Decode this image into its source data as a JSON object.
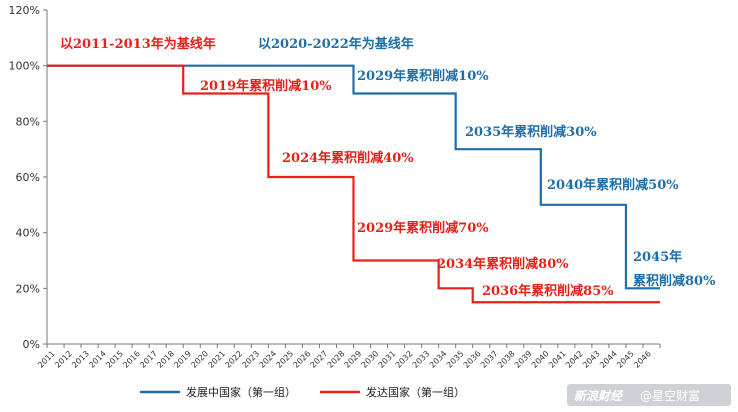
{
  "chart_data": {
    "type": "line",
    "x": [
      2011,
      2012,
      2013,
      2014,
      2015,
      2016,
      2017,
      2018,
      2019,
      2020,
      2021,
      2022,
      2023,
      2024,
      2025,
      2026,
      2027,
      2028,
      2029,
      2030,
      2031,
      2032,
      2033,
      2034,
      2035,
      2036,
      2037,
      2038,
      2039,
      2040,
      2041,
      2042,
      2043,
      2044,
      2045,
      2046
    ],
    "ylim": [
      0,
      120
    ],
    "yticks": [
      "0%",
      "20%",
      "40%",
      "60%",
      "80%",
      "100%",
      "120%"
    ],
    "series": [
      {
        "name": "发展中国家（第一组）",
        "color": "#1f6ea8",
        "values": [
          100,
          100,
          100,
          100,
          100,
          100,
          100,
          100,
          100,
          100,
          100,
          100,
          100,
          100,
          100,
          100,
          100,
          100,
          90,
          90,
          90,
          90,
          90,
          90,
          70,
          70,
          70,
          70,
          70,
          50,
          50,
          50,
          50,
          50,
          20,
          20
        ]
      },
      {
        "name": "发达国家（第一组）",
        "color": "#e8201a",
        "values": [
          100,
          100,
          100,
          100,
          100,
          100,
          100,
          100,
          90,
          90,
          90,
          90,
          90,
          60,
          60,
          60,
          60,
          60,
          30,
          30,
          30,
          30,
          30,
          20,
          20,
          15,
          15,
          15,
          15,
          15,
          15,
          15,
          15,
          15,
          15,
          15
        ]
      }
    ],
    "annotations": [
      {
        "text": "以2011-2013年为基线年",
        "series": 1,
        "year": 2011,
        "value": 100
      },
      {
        "text": "以2020-2022年为基线年",
        "series": 0,
        "year": 2020,
        "value": 100
      },
      {
        "text": "2019年累积削减10%",
        "series": 1,
        "year": 2019,
        "value": 90
      },
      {
        "text": "2029年累积削减10%",
        "series": 0,
        "year": 2029,
        "value": 90
      },
      {
        "text": "2024年累积削减40%",
        "series": 1,
        "year": 2024,
        "value": 60
      },
      {
        "text": "2035年累积削减30%",
        "series": 0,
        "year": 2035,
        "value": 70
      },
      {
        "text": "2040年累积削减50%",
        "series": 0,
        "year": 2040,
        "value": 50
      },
      {
        "text": "2029年累积削减70%",
        "series": 1,
        "year": 2029,
        "value": 30
      },
      {
        "text": "2045年",
        "series": 0,
        "year": 2045,
        "value": 20
      },
      {
        "text": "累积削减80%",
        "series": 0,
        "year": 2045,
        "value": 20
      },
      {
        "text": "2034年累积削减80%",
        "series": 1,
        "year": 2034,
        "value": 20
      },
      {
        "text": "2036年累积削减85%",
        "series": 1,
        "year": 2036,
        "value": 15
      }
    ],
    "legend_position": "bottom",
    "grid": false
  },
  "watermark": {
    "logo": "新浪财经",
    "text": "@星空财富"
  }
}
